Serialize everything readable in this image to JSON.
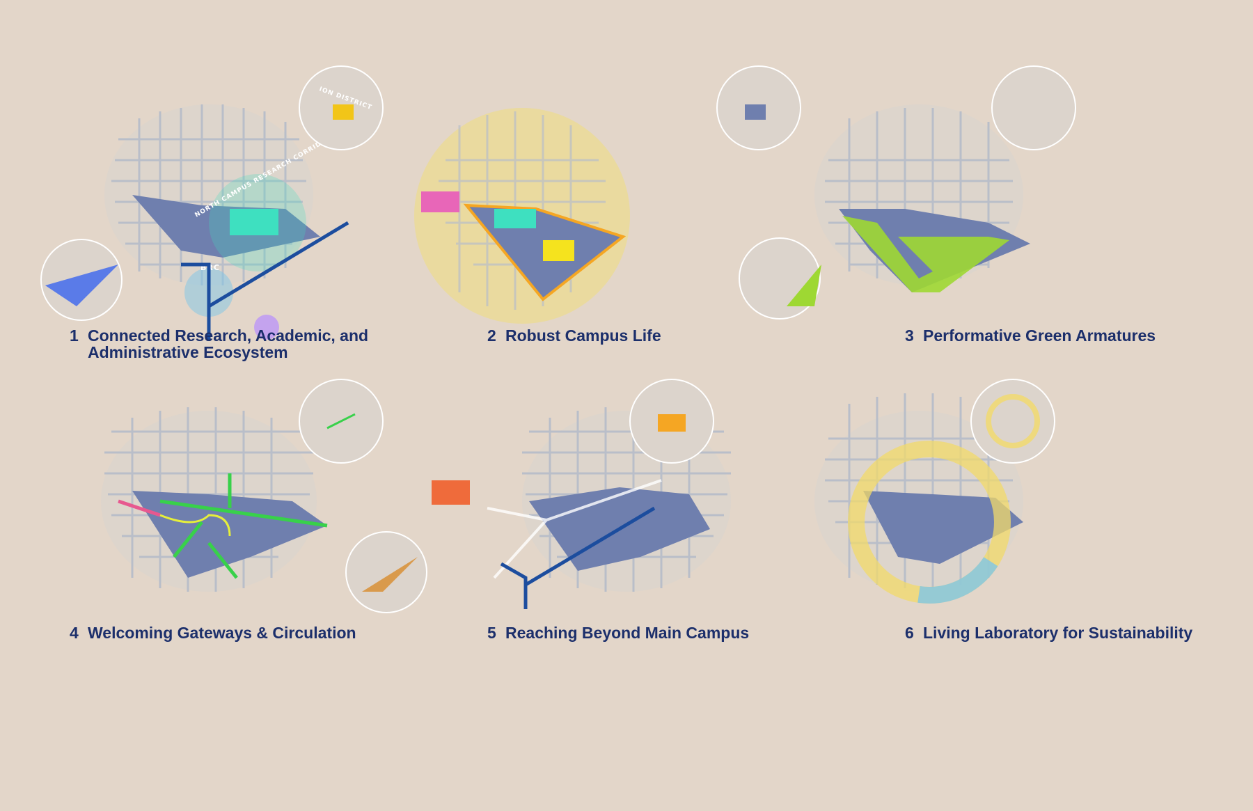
{
  "panels": [
    {
      "number": "1",
      "title": "Connected Research, Academic, and\nAdministrative Ecosystem",
      "labels": {
        "district": "ION DISTRICT",
        "corridor": "NORTH CAMPUS RESEARCH CORRIDOR",
        "brc": "BRC"
      }
    },
    {
      "number": "2",
      "title": "Robust Campus Life"
    },
    {
      "number": "3",
      "title": "Performative Green Armatures"
    },
    {
      "number": "4",
      "title": "Welcoming Gateways & Circulation"
    },
    {
      "number": "5",
      "title": "Reaching Beyond Main Campus"
    },
    {
      "number": "6",
      "title": "Living Laboratory for Sustainability"
    }
  ],
  "colors": {
    "background": "#e3d6c9",
    "campus": "#6f7fae",
    "streets": "#b9bec9",
    "arrow": "#4b5f95",
    "research": "#3ee0c0",
    "district": "#f2c518",
    "life_yellow": "#f2df6c",
    "life_pink": "#e866b8",
    "orange": "#f5a623",
    "green": "#9ed833",
    "gateway_green": "#38d14a",
    "gateway_pink": "#e7588f",
    "beyond_orange": "#ef6b3b",
    "ring_blue": "#7ec6e8",
    "caption": "#1c2f6b"
  }
}
